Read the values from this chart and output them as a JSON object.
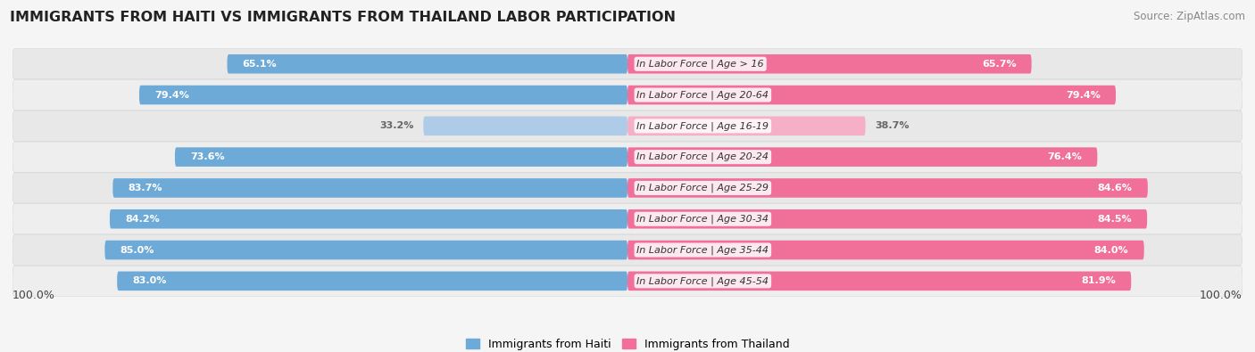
{
  "title": "IMMIGRANTS FROM HAITI VS IMMIGRANTS FROM THAILAND LABOR PARTICIPATION",
  "source": "Source: ZipAtlas.com",
  "categories": [
    "In Labor Force | Age > 16",
    "In Labor Force | Age 20-64",
    "In Labor Force | Age 16-19",
    "In Labor Force | Age 20-24",
    "In Labor Force | Age 25-29",
    "In Labor Force | Age 30-34",
    "In Labor Force | Age 35-44",
    "In Labor Force | Age 45-54"
  ],
  "haiti_values": [
    65.1,
    79.4,
    33.2,
    73.6,
    83.7,
    84.2,
    85.0,
    83.0
  ],
  "thailand_values": [
    65.7,
    79.4,
    38.7,
    76.4,
    84.6,
    84.5,
    84.0,
    81.9
  ],
  "haiti_color": "#6daad8",
  "thailand_color": "#f0709a",
  "haiti_light_color": "#aecce8",
  "thailand_light_color": "#f5b0c8",
  "row_bg_color": "#e8e8e8",
  "row_bg_alt": "#f0f0f0",
  "background_color": "#f5f5f5",
  "label_white": "#ffffff",
  "label_dark": "#666666",
  "legend_haiti": "Immigrants from Haiti",
  "legend_thailand": "Immigrants from Thailand",
  "x_label": "100.0%",
  "title_fontsize": 11.5,
  "source_fontsize": 8.5,
  "bar_label_fontsize": 8.0,
  "cat_label_fontsize": 8.0
}
